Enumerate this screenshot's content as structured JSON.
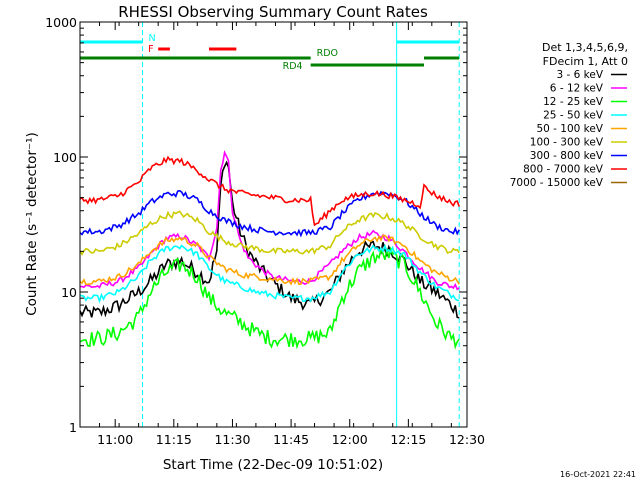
{
  "chart_data": {
    "type": "line",
    "title": "RHESSI Observing Summary Count Rates",
    "xlabel": "Start Time (22-Dec-09 10:51:02)",
    "ylabel": "Count Rate (s⁻¹ detector⁻¹)",
    "yscale": "log",
    "ylim": [
      1,
      1000
    ],
    "xlim": [
      "10:51",
      "12:30"
    ],
    "x_ticks": [
      "11:00",
      "11:15",
      "11:30",
      "11:45",
      "12:00",
      "12:15",
      "12:30"
    ],
    "y_ticks": [
      "1",
      "10",
      "100",
      "1000"
    ],
    "grid": false,
    "timestamp": "16-Oct-2021 22:41",
    "legend": {
      "position": "right",
      "header": [
        "Det 1,3,4,5,6,9,",
        "FDecim 1, Att 0"
      ]
    },
    "series": [
      {
        "name": "3 - 6 keV",
        "color": "#000000",
        "x": [
          "10:51",
          "10:56",
          "11:01",
          "11:06",
          "11:09",
          "11:13",
          "11:17",
          "11:21",
          "11:24",
          "11:26",
          "11:27",
          "11:28",
          "11:29",
          "11:30",
          "11:32",
          "11:34",
          "11:37",
          "11:40",
          "11:45",
          "11:50",
          "11:55",
          "11:58",
          "12:02",
          "12:06",
          "12:10",
          "12:14",
          "12:18",
          "12:22",
          "12:26",
          "12:28"
        ],
        "y": [
          7,
          7,
          8,
          10,
          12,
          16,
          17,
          14,
          12,
          20,
          60,
          95,
          85,
          45,
          28,
          20,
          15,
          12,
          9,
          8,
          10,
          14,
          20,
          22,
          21,
          17,
          12,
          10,
          8,
          7
        ]
      },
      {
        "name": "6 - 12 keV",
        "color": "#ff00ff",
        "x": [
          "10:51",
          "10:56",
          "11:01",
          "11:06",
          "11:09",
          "11:13",
          "11:17",
          "11:21",
          "11:24",
          "11:26",
          "11:27",
          "11:28",
          "11:29",
          "11:30",
          "11:32",
          "11:34",
          "11:37",
          "11:40",
          "11:45",
          "11:50",
          "11:55",
          "11:58",
          "12:02",
          "12:06",
          "12:10",
          "12:14",
          "12:18",
          "12:22",
          "12:26",
          "12:28"
        ],
        "y": [
          11,
          11,
          12,
          15,
          19,
          25,
          26,
          22,
          18,
          30,
          80,
          110,
          90,
          40,
          24,
          18,
          15,
          13,
          12,
          12,
          16,
          20,
          25,
          27,
          25,
          20,
          15,
          12,
          11,
          11
        ]
      },
      {
        "name": "12 - 25 keV",
        "color": "#00ff00",
        "x": [
          "10:51",
          "10:56",
          "11:01",
          "11:06",
          "11:09",
          "11:13",
          "11:17",
          "11:21",
          "11:24",
          "11:28",
          "11:32",
          "11:36",
          "11:40",
          "11:45",
          "11:50",
          "11:55",
          "11:58",
          "12:02",
          "12:06",
          "12:10",
          "12:14",
          "12:18",
          "12:22",
          "12:26",
          "12:28"
        ],
        "y": [
          4.5,
          4.5,
          5,
          6.5,
          10,
          14,
          16,
          13,
          9,
          7,
          6,
          5,
          4.5,
          4.5,
          4.5,
          5,
          9,
          14,
          18,
          19,
          16,
          10,
          6,
          4.5,
          4.5
        ]
      },
      {
        "name": "25 - 50 keV",
        "color": "#00ffff",
        "x": [
          "10:51",
          "10:56",
          "11:01",
          "11:06",
          "11:09",
          "11:13",
          "11:17",
          "11:21",
          "11:24",
          "11:28",
          "11:32",
          "11:36",
          "11:40",
          "11:45",
          "11:50",
          "11:55",
          "11:58",
          "12:02",
          "12:06",
          "12:10",
          "12:14",
          "12:18",
          "12:22",
          "12:26",
          "12:28"
        ],
        "y": [
          9,
          9,
          10,
          13,
          17,
          21,
          22,
          19,
          15,
          12,
          11,
          10,
          9.5,
          9,
          9,
          10,
          14,
          19,
          21,
          21,
          19,
          14,
          11,
          9.5,
          9
        ]
      },
      {
        "name": "50 - 100 keV",
        "color": "#ffa500",
        "x": [
          "10:51",
          "10:56",
          "11:01",
          "11:06",
          "11:09",
          "11:13",
          "11:17",
          "11:21",
          "11:24",
          "11:28",
          "11:32",
          "11:36",
          "11:40",
          "11:45",
          "11:50",
          "11:55",
          "11:58",
          "12:02",
          "12:06",
          "12:10",
          "12:14",
          "12:18",
          "12:22",
          "12:26",
          "12:28"
        ],
        "y": [
          12,
          12,
          13,
          16,
          20,
          24,
          25,
          22,
          18,
          15,
          13.5,
          13,
          12.5,
          12,
          12,
          13,
          17,
          22,
          25,
          25,
          22,
          17,
          14,
          12.5,
          12
        ]
      },
      {
        "name": "100 - 300 keV",
        "color": "#cccc00",
        "x": [
          "10:51",
          "10:56",
          "11:01",
          "11:06",
          "11:09",
          "11:13",
          "11:17",
          "11:21",
          "11:24",
          "11:28",
          "11:32",
          "11:36",
          "11:40",
          "11:45",
          "11:50",
          "11:55",
          "11:58",
          "12:02",
          "12:06",
          "12:10",
          "12:14",
          "12:18",
          "12:22",
          "12:26",
          "12:28"
        ],
        "y": [
          20,
          20,
          22,
          27,
          32,
          37,
          38,
          34,
          28,
          24,
          22,
          21,
          20,
          20,
          20,
          22,
          28,
          34,
          37,
          36,
          32,
          26,
          22,
          20,
          20
        ]
      },
      {
        "name": "300 - 800 keV",
        "color": "#0000ff",
        "x": [
          "10:51",
          "10:56",
          "11:01",
          "11:06",
          "11:09",
          "11:13",
          "11:17",
          "11:21",
          "11:24",
          "11:28",
          "11:32",
          "11:36",
          "11:40",
          "11:45",
          "11:50",
          "11:55",
          "11:58",
          "12:02",
          "12:06",
          "12:10",
          "12:14",
          "12:18",
          "12:22",
          "12:26",
          "12:28"
        ],
        "y": [
          28,
          28,
          31,
          38,
          46,
          53,
          54,
          48,
          40,
          34,
          31,
          29,
          28,
          27.5,
          27.5,
          30,
          38,
          48,
          54,
          54,
          48,
          38,
          31,
          28,
          28
        ]
      },
      {
        "name": "800 - 7000 keV",
        "color": "#ff0000",
        "x": [
          "10:51",
          "10:56",
          "11:01",
          "11:06",
          "11:09",
          "11:13",
          "11:17",
          "11:21",
          "11:24",
          "11:28",
          "11:32",
          "11:36",
          "11:40",
          "11:45",
          "11:50",
          "11:51",
          "11:55",
          "11:58",
          "12:02",
          "12:06",
          "12:10",
          "12:14",
          "12:18",
          "12:19",
          "12:22",
          "12:26",
          "12:28"
        ],
        "y": [
          48,
          48,
          52,
          65,
          82,
          95,
          93,
          80,
          68,
          58,
          54,
          52,
          50,
          48,
          48,
          31,
          40,
          48,
          52,
          54,
          52,
          48,
          44,
          60,
          52,
          46,
          45
        ]
      },
      {
        "name": "7000 - 15000 keV",
        "color": "#996600",
        "x": [],
        "y": []
      }
    ],
    "flags": [
      {
        "label": "N",
        "color": "#00ffff"
      },
      {
        "label": "F",
        "color": "#ff0000"
      },
      {
        "label": "RDO",
        "color": "#007f00"
      },
      {
        "label": "RD4",
        "color": "#007f00"
      }
    ],
    "flag_segments": [
      {
        "flag": "N",
        "start": "10:51",
        "end": "11:07"
      },
      {
        "flag": "N",
        "start": "12:12",
        "end": "12:28"
      },
      {
        "flag": "F",
        "start": "11:11",
        "end": "11:14"
      },
      {
        "flag": "F",
        "start": "11:24",
        "end": "11:31"
      },
      {
        "flag": "RDO",
        "start": "10:51",
        "end": "11:50"
      },
      {
        "flag": "RDO",
        "start": "12:19",
        "end": "12:28"
      },
      {
        "flag": "RD4",
        "start": "11:50",
        "end": "12:19"
      }
    ],
    "vertical_markers": [
      {
        "time": "10:51",
        "color": "#00ffff",
        "style": "solid"
      },
      {
        "time": "11:07",
        "color": "#00ffff",
        "style": "dashed"
      },
      {
        "time": "12:12",
        "color": "#00ffff",
        "style": "solid"
      },
      {
        "time": "12:28",
        "color": "#00ffff",
        "style": "dashed"
      }
    ]
  }
}
